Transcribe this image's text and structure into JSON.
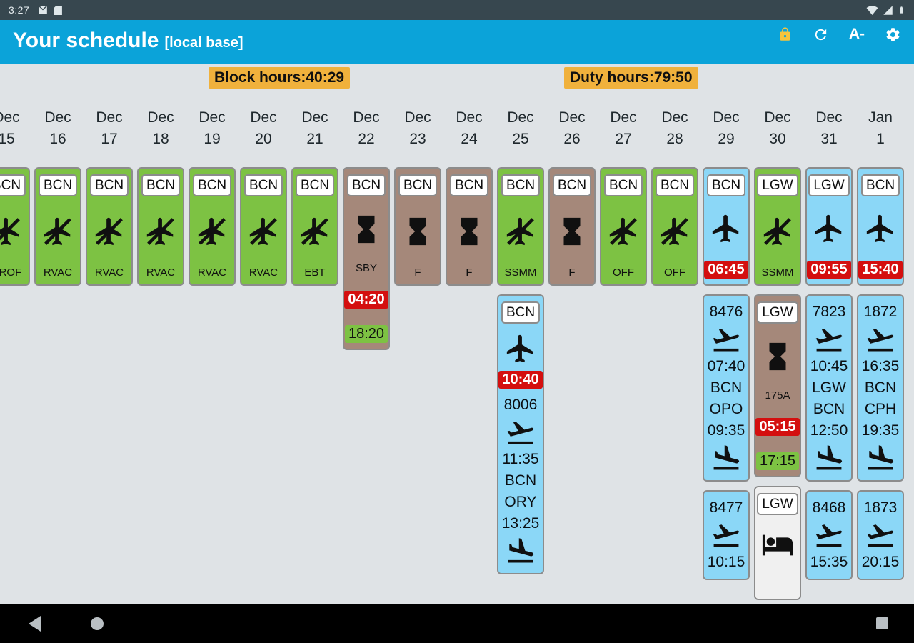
{
  "status_bar": {
    "time": "3:27"
  },
  "app_bar": {
    "title": "Your schedule",
    "subtitle": "[local base]",
    "font_size_button": "A-"
  },
  "summary": {
    "block_label": "Block hours:",
    "block_value": "40:29",
    "duty_label": "Duty hours:",
    "duty_value": "79:50"
  },
  "colors": {
    "appbar": "#0ba3d9",
    "amber": "#f0b13c",
    "green": "#7dc243",
    "brown": "#a5887a",
    "blue": "#8bd7f7",
    "hotel": "#f0f0f0",
    "red": "#d40f0f"
  },
  "schedule": {
    "columns": [
      {
        "month": "Dec",
        "day": "15",
        "cards": [
          {
            "type": "duty",
            "bg": "green",
            "chip": "BCN",
            "icon": "no-flight",
            "label": "CROF"
          }
        ]
      },
      {
        "month": "Dec",
        "day": "16",
        "cards": [
          {
            "type": "duty",
            "bg": "green",
            "chip": "BCN",
            "icon": "no-flight",
            "label": "RVAC"
          }
        ]
      },
      {
        "month": "Dec",
        "day": "17",
        "cards": [
          {
            "type": "duty",
            "bg": "green",
            "chip": "BCN",
            "icon": "no-flight",
            "label": "RVAC"
          }
        ]
      },
      {
        "month": "Dec",
        "day": "18",
        "cards": [
          {
            "type": "duty",
            "bg": "green",
            "chip": "BCN",
            "icon": "no-flight",
            "label": "RVAC"
          }
        ]
      },
      {
        "month": "Dec",
        "day": "19",
        "cards": [
          {
            "type": "duty",
            "bg": "green",
            "chip": "BCN",
            "icon": "no-flight",
            "label": "RVAC"
          }
        ]
      },
      {
        "month": "Dec",
        "day": "20",
        "cards": [
          {
            "type": "duty",
            "bg": "green",
            "chip": "BCN",
            "icon": "no-flight",
            "label": "RVAC"
          }
        ]
      },
      {
        "month": "Dec",
        "day": "21",
        "cards": [
          {
            "type": "duty",
            "bg": "green",
            "chip": "BCN",
            "icon": "no-flight",
            "label": "EBT"
          }
        ]
      },
      {
        "month": "Dec",
        "day": "22",
        "cards": [
          {
            "type": "duty",
            "bg": "brown",
            "chip": "BCN",
            "icon": "hourglass",
            "label": "SBY",
            "times": [
              {
                "v": "04:20",
                "c": "red"
              },
              {
                "v": "18:20",
                "c": "green"
              }
            ]
          }
        ]
      },
      {
        "month": "Dec",
        "day": "23",
        "cards": [
          {
            "type": "duty",
            "bg": "brown",
            "chip": "BCN",
            "icon": "hourglass",
            "label": "F"
          }
        ]
      },
      {
        "month": "Dec",
        "day": "24",
        "cards": [
          {
            "type": "duty",
            "bg": "brown",
            "chip": "BCN",
            "icon": "hourglass",
            "label": "F"
          }
        ]
      },
      {
        "month": "Dec",
        "day": "25",
        "cards": [
          {
            "type": "duty",
            "bg": "green",
            "chip": "BCN",
            "icon": "no-flight",
            "label": "SSMM"
          },
          {
            "type": "legs",
            "bg": "blue",
            "chip": "BCN",
            "icon": "plane",
            "report": "10:40",
            "lines": [
              [
                "t",
                "8006"
              ],
              [
                "i",
                "takeoff"
              ],
              [
                "t",
                "11:35"
              ],
              [
                "t",
                "BCN"
              ],
              [
                "t",
                "ORY"
              ],
              [
                "t",
                "13:25"
              ],
              [
                "i",
                "landing"
              ]
            ]
          }
        ]
      },
      {
        "month": "Dec",
        "day": "26",
        "cards": [
          {
            "type": "duty",
            "bg": "brown",
            "chip": "BCN",
            "icon": "hourglass",
            "label": "F"
          }
        ]
      },
      {
        "month": "Dec",
        "day": "27",
        "cards": [
          {
            "type": "duty",
            "bg": "green",
            "chip": "BCN",
            "icon": "no-flight",
            "label": "OFF"
          }
        ]
      },
      {
        "month": "Dec",
        "day": "28",
        "cards": [
          {
            "type": "duty",
            "bg": "green",
            "chip": "BCN",
            "icon": "no-flight",
            "label": "OFF"
          }
        ]
      },
      {
        "month": "Dec",
        "day": "29",
        "cards": [
          {
            "type": "report",
            "bg": "blue",
            "chip": "BCN",
            "icon": "plane",
            "report": "06:45"
          },
          {
            "type": "legs",
            "bg": "blue",
            "lines": [
              [
                "t",
                "8476"
              ],
              [
                "i",
                "takeoff"
              ],
              [
                "t",
                "07:40"
              ],
              [
                "t",
                "BCN"
              ],
              [
                "t",
                "OPO"
              ],
              [
                "t",
                "09:35"
              ],
              [
                "i",
                "landing"
              ]
            ]
          },
          {
            "type": "legs",
            "bg": "blue",
            "lines": [
              [
                "t",
                "8477"
              ],
              [
                "i",
                "takeoff"
              ],
              [
                "t",
                "10:15"
              ]
            ]
          }
        ]
      },
      {
        "month": "Dec",
        "day": "30",
        "cards": [
          {
            "type": "duty",
            "bg": "green",
            "chip": "LGW",
            "icon": "no-flight",
            "label": "SSMM"
          },
          {
            "type": "duty",
            "bg": "brown",
            "chip": "LGW",
            "icon": "hourglass",
            "label": "175A",
            "times": [
              {
                "v": "05:15",
                "c": "red"
              },
              {
                "v": "17:15",
                "c": "green"
              }
            ]
          },
          {
            "type": "hotel",
            "bg": "hotel",
            "chip": "LGW",
            "icon": "bed"
          }
        ]
      },
      {
        "month": "Dec",
        "day": "31",
        "cards": [
          {
            "type": "report",
            "bg": "blue",
            "chip": "LGW",
            "icon": "plane",
            "report": "09:55"
          },
          {
            "type": "legs",
            "bg": "blue",
            "lines": [
              [
                "t",
                "7823"
              ],
              [
                "i",
                "takeoff"
              ],
              [
                "t",
                "10:45"
              ],
              [
                "t",
                "LGW"
              ],
              [
                "t",
                "BCN"
              ],
              [
                "t",
                "12:50"
              ],
              [
                "i",
                "landing"
              ]
            ]
          },
          {
            "type": "legs",
            "bg": "blue",
            "lines": [
              [
                "t",
                "8468"
              ],
              [
                "i",
                "takeoff"
              ],
              [
                "t",
                "15:35"
              ]
            ]
          }
        ]
      },
      {
        "month": "Jan",
        "day": "1",
        "cards": [
          {
            "type": "report",
            "bg": "blue",
            "chip": "BCN",
            "icon": "plane",
            "report": "15:40"
          },
          {
            "type": "legs",
            "bg": "blue",
            "lines": [
              [
                "t",
                "1872"
              ],
              [
                "i",
                "takeoff"
              ],
              [
                "t",
                "16:35"
              ],
              [
                "t",
                "BCN"
              ],
              [
                "t",
                "CPH"
              ],
              [
                "t",
                "19:35"
              ],
              [
                "i",
                "landing"
              ]
            ]
          },
          {
            "type": "legs",
            "bg": "blue",
            "lines": [
              [
                "t",
                "1873"
              ],
              [
                "i",
                "takeoff"
              ],
              [
                "t",
                "20:15"
              ]
            ]
          }
        ]
      }
    ]
  }
}
